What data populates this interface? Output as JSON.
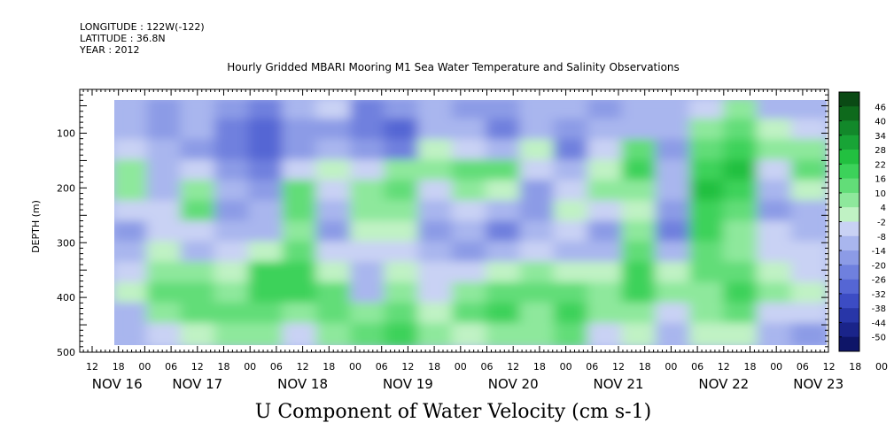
{
  "header": {
    "longitude": "LONGITUDE : 122W(-122)",
    "latitude": "LATITUDE : 36.8N",
    "year": "YEAR : 2012"
  },
  "chart_data": {
    "type": "heatmap",
    "title": "Hourly Gridded MBARI Mooring M1 Sea Water Temperature and Salinity Observations",
    "xlabel": "U Component of Water Velocity (cm s-1)",
    "ylabel": "DEPTH (m)",
    "ylim": [
      500,
      20
    ],
    "y_ticks": [
      100,
      200,
      300,
      400,
      500
    ],
    "x_day_labels": [
      "NOV 16",
      "NOV 17",
      "NOV 18",
      "NOV 19",
      "NOV 20",
      "NOV 21",
      "NOV 22",
      "NOV 23"
    ],
    "x_hour_labels": [
      "12",
      "18",
      "00",
      "06",
      "12",
      "18",
      "00",
      "06",
      "12",
      "18",
      "00",
      "06",
      "12",
      "18",
      "00",
      "06",
      "12",
      "18",
      "00",
      "06",
      "12",
      "18",
      "00",
      "06",
      "12",
      "18",
      "00",
      "06",
      "12",
      "18",
      "00",
      "06"
    ],
    "colorbar_labels": [
      "46",
      "40",
      "34",
      "28",
      "22",
      "16",
      "10",
      "4",
      "-2",
      "-8",
      "-14",
      "-20",
      "-26",
      "-32",
      "-38",
      "-44",
      "-50"
    ],
    "colorbar_colors": [
      "#0a4a14",
      "#0e6a1c",
      "#12882a",
      "#18a436",
      "#22c040",
      "#3cd25a",
      "#62dd78",
      "#8ee89c",
      "#c0f2c4",
      "#c9d2f4",
      "#a9b6ee",
      "#8c9be6",
      "#6f80de",
      "#5566d4",
      "#3c4cc4",
      "#2836a8",
      "#1a248a",
      "#0e1568"
    ],
    "columns": [
      {
        "day": "NOV 16",
        "values": [
          -12,
          -10,
          -6,
          10,
          6,
          -2,
          -14,
          -12,
          -4,
          2,
          -10,
          -8
        ]
      },
      {
        "day": "NOV 16",
        "values": [
          -14,
          -16,
          -12,
          -8,
          -10,
          -6,
          -2,
          4,
          10,
          14,
          6,
          -4
        ]
      },
      {
        "day": "NOV 17",
        "values": [
          -8,
          -12,
          -14,
          -6,
          8,
          12,
          -4,
          -10,
          6,
          16,
          12,
          4
        ]
      },
      {
        "day": "NOV 17",
        "values": [
          -16,
          -20,
          -22,
          -18,
          -12,
          -14,
          -10,
          -6,
          4,
          10,
          14,
          8
        ]
      },
      {
        "day": "NOV 17",
        "values": [
          -22,
          -26,
          -28,
          -22,
          -16,
          -10,
          -8,
          4,
          18,
          22,
          14,
          6
        ]
      },
      {
        "day": "NOV 18",
        "values": [
          -10,
          -18,
          -14,
          -4,
          12,
          16,
          10,
          14,
          20,
          18,
          8,
          -2
        ]
      },
      {
        "day": "NOV 18",
        "values": [
          -6,
          -14,
          -10,
          2,
          -4,
          -12,
          -14,
          -6,
          4,
          12,
          16,
          10
        ]
      },
      {
        "day": "NOV 18",
        "values": [
          -20,
          -24,
          -18,
          -6,
          8,
          10,
          4,
          -6,
          -10,
          -8,
          6,
          14
        ]
      },
      {
        "day": "NOV 19",
        "values": [
          -18,
          -26,
          -20,
          6,
          16,
          10,
          2,
          -4,
          2,
          10,
          16,
          18
        ]
      },
      {
        "day": "NOV 19",
        "values": [
          -8,
          -12,
          4,
          8,
          -4,
          -10,
          -14,
          -8,
          -4,
          -2,
          4,
          6
        ]
      },
      {
        "day": "NOV 19",
        "values": [
          -14,
          -10,
          -6,
          12,
          6,
          -6,
          -12,
          -14,
          -6,
          6,
          12,
          4
        ]
      },
      {
        "day": "NOV 20",
        "values": [
          -16,
          -20,
          -12,
          14,
          2,
          -12,
          -20,
          -10,
          4,
          12,
          18,
          10
        ]
      },
      {
        "day": "NOV 20",
        "values": [
          -12,
          -8,
          4,
          -6,
          -14,
          -18,
          -10,
          -2,
          8,
          14,
          10,
          6
        ]
      },
      {
        "day": "NOV 20",
        "values": [
          -10,
          -14,
          -20,
          -12,
          -4,
          2,
          -4,
          -8,
          4,
          16,
          18,
          12
        ]
      },
      {
        "day": "NOV 21",
        "values": [
          -14,
          -8,
          -4,
          2,
          6,
          -6,
          -14,
          -8,
          2,
          10,
          8,
          -2
        ]
      },
      {
        "day": "NOV 21",
        "values": [
          -12,
          -10,
          12,
          18,
          10,
          4,
          10,
          16,
          20,
          18,
          10,
          4
        ]
      },
      {
        "day": "NOV 21",
        "values": [
          -8,
          -12,
          -14,
          -10,
          -12,
          -18,
          -20,
          -10,
          4,
          6,
          -2,
          -8
        ]
      },
      {
        "day": "NOV 22",
        "values": [
          -6,
          8,
          12,
          18,
          24,
          22,
          20,
          16,
          12,
          10,
          6,
          2
        ]
      },
      {
        "day": "NOV 22",
        "values": [
          10,
          16,
          22,
          26,
          20,
          14,
          10,
          6,
          12,
          18,
          12,
          4
        ]
      },
      {
        "day": "NOV 22",
        "values": [
          -8,
          4,
          10,
          -4,
          -12,
          -14,
          -6,
          -2,
          4,
          8,
          -4,
          -12
        ]
      },
      {
        "day": "NOV 23",
        "values": [
          -10,
          -6,
          10,
          14,
          4,
          -8,
          -12,
          -6,
          -2,
          4,
          -6,
          -14
        ]
      }
    ]
  }
}
